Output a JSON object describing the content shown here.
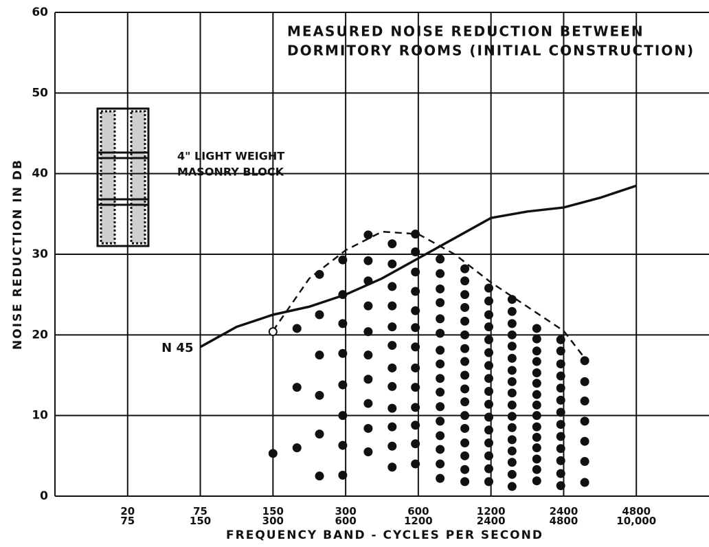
{
  "chart_data": {
    "type": "scatter",
    "title_lines": [
      "MEASURED NOISE REDUCTION BETWEEN",
      "DORMITORY ROOMS (INITIAL CONSTRUCTION)"
    ],
    "annotation_lines": [
      "4\" LIGHT WEIGHT",
      "MASONRY BLOCK"
    ],
    "x_label": "FREQUENCY BAND - CYCLES PER SECOND",
    "y_label": "NOISE REDUCTION IN DB",
    "xlim": [
      0,
      9
    ],
    "ylim": [
      0,
      60
    ],
    "yticks": [
      0,
      10,
      20,
      30,
      40,
      50,
      60
    ],
    "xticks": [
      {
        "value": 1,
        "label": "20\n75"
      },
      {
        "value": 2,
        "label": "75\n150"
      },
      {
        "value": 3,
        "label": "150\n300"
      },
      {
        "value": 4,
        "label": "300\n600"
      },
      {
        "value": 5,
        "label": "600\n1200"
      },
      {
        "value": 6,
        "label": "1200\n2400"
      },
      {
        "value": 7,
        "label": "2400\n4800"
      },
      {
        "value": 8,
        "label": "4800\n10,000"
      }
    ],
    "grid": true,
    "color": "#111111",
    "lines": [
      {
        "name": "N 45",
        "dashed": false,
        "x": [
          2,
          2.5,
          3,
          3.5,
          4,
          4.5,
          5,
          5.5,
          6,
          6.5,
          7,
          7.5,
          8
        ],
        "values": [
          18.5,
          21,
          22.5,
          23.5,
          25,
          27,
          29.5,
          32,
          34.5,
          35.3,
          35.8,
          37,
          38.5
        ]
      },
      {
        "dashed": true,
        "x": [
          3,
          3.5,
          4,
          4.5,
          5,
          5.5,
          6,
          6.5,
          7,
          7.3
        ],
        "values": [
          20.5,
          27,
          30.5,
          32.8,
          32.5,
          30,
          26.5,
          23.5,
          20.5,
          17
        ]
      }
    ],
    "open_points": {
      "x": [
        3.0
      ],
      "values": [
        20.4
      ]
    },
    "point_columns": [
      {
        "x": 3.0,
        "values": [
          5.3
        ]
      },
      {
        "x": 3.33,
        "values": [
          20.8,
          13.5,
          6.0
        ]
      },
      {
        "x": 3.64,
        "values": [
          27.5,
          22.5,
          17.5,
          12.5,
          7.7,
          2.5
        ]
      },
      {
        "x": 3.96,
        "values": [
          29.3,
          25,
          21.4,
          17.7,
          13.8,
          10,
          6.3,
          2.6
        ]
      },
      {
        "x": 4.31,
        "values": [
          32.4,
          29.2,
          26.7,
          23.6,
          20.4,
          17.5,
          14.5,
          11.5,
          8.4,
          5.5
        ]
      },
      {
        "x": 4.64,
        "values": [
          31.3,
          28.8,
          26,
          23.6,
          21,
          18.7,
          15.9,
          13.6,
          10.9,
          8.6,
          6.2,
          3.6
        ]
      },
      {
        "x": 4.96,
        "values": [
          32.5,
          30.3,
          27.8,
          25.4,
          23,
          20.9,
          18.5,
          15.9,
          13.5,
          11,
          8.8,
          6.5,
          4
        ]
      },
      {
        "x": 5.3,
        "values": [
          29.4,
          27.6,
          25.7,
          24,
          22,
          20.2,
          18.1,
          16.4,
          14.6,
          12.9,
          11.1,
          9.3,
          7.5,
          5.8,
          4,
          2.2
        ]
      },
      {
        "x": 5.64,
        "values": [
          28.2,
          26.7,
          25,
          23.4,
          21.7,
          20,
          18.3,
          16.7,
          15,
          13.3,
          11.7,
          10,
          8.4,
          6.6,
          5,
          3.3,
          1.8
        ]
      },
      {
        "x": 5.97,
        "values": [
          25.8,
          24.2,
          22.5,
          21,
          19.4,
          17.8,
          16.2,
          14.6,
          13,
          11.4,
          9.8,
          8.2,
          6.6,
          5,
          3.4,
          1.8
        ]
      },
      {
        "x": 6.29,
        "values": [
          24.4,
          22.9,
          21.4,
          20,
          18.6,
          17.1,
          15.6,
          14.2,
          12.8,
          11.3,
          9.9,
          8.5,
          7,
          5.6,
          4.2,
          2.7,
          1.2
        ]
      },
      {
        "x": 6.63,
        "values": [
          20.8,
          19.5,
          18,
          16.7,
          15.3,
          14,
          12.6,
          11.3,
          10,
          8.6,
          7.3,
          6,
          4.6,
          3.3,
          1.9
        ]
      },
      {
        "x": 6.96,
        "values": [
          19.4,
          18,
          16.4,
          14.9,
          13.4,
          11.9,
          10.4,
          8.9,
          7.4,
          5.9,
          4.4,
          2.8,
          1.3
        ]
      },
      {
        "x": 7.29,
        "values": [
          16.8,
          14.2,
          11.8,
          9.3,
          6.8,
          4.3,
          1.7
        ]
      }
    ]
  }
}
